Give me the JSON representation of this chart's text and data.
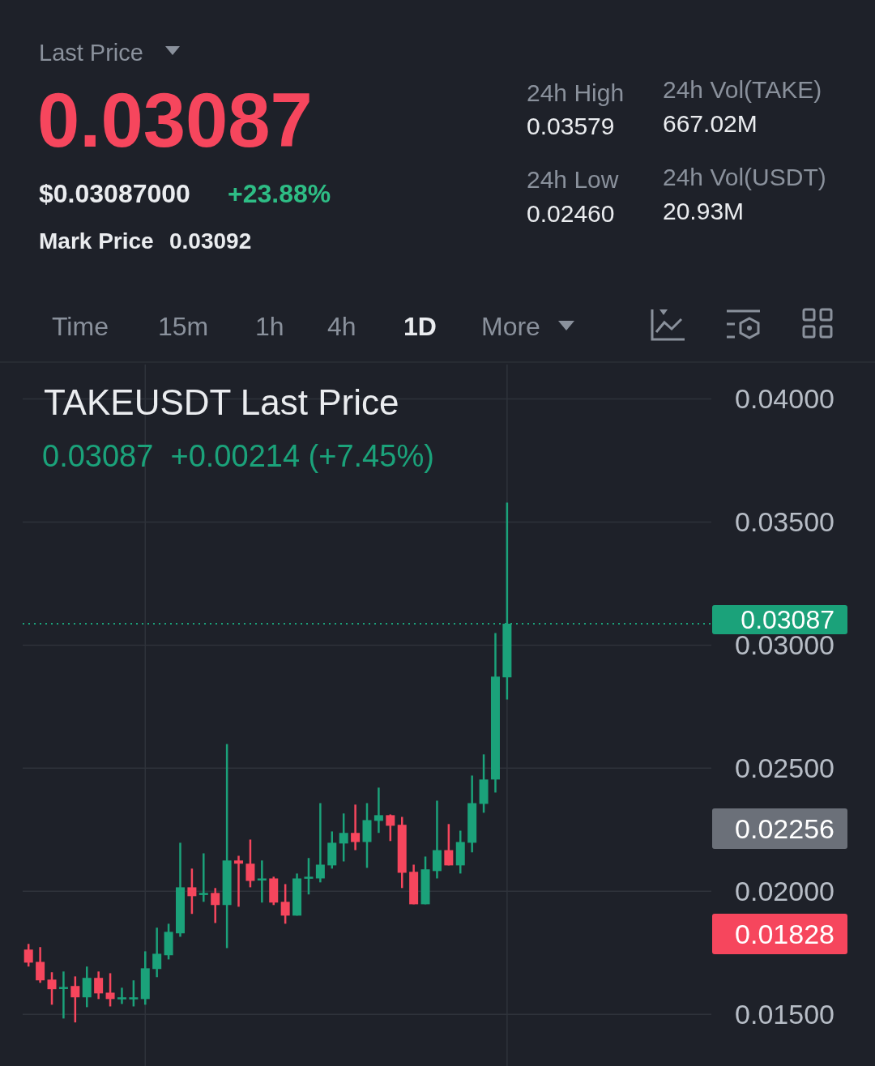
{
  "chart_data": {
    "type": "candlestick",
    "title": "TAKEUSDT Last Price",
    "subtitle": "0.03087  +0.00214 (+7.45%)",
    "categories": [
      null,
      null,
      null,
      null,
      null,
      null,
      null,
      null,
      null,
      null,
      null,
      null,
      null,
      null,
      null,
      null,
      null,
      null,
      null,
      null,
      null,
      null,
      null,
      null,
      null,
      null,
      null,
      null,
      null,
      null,
      null,
      null,
      null,
      null,
      null,
      null,
      null,
      null,
      null,
      null,
      null,
      null,
      null,
      null,
      null,
      null,
      null,
      null,
      null,
      null,
      null,
      null,
      null,
      null,
      null,
      null,
      null,
      null,
      null
    ],
    "ohlc": [
      [
        0.01763,
        0.01786,
        0.01694,
        0.0171
      ],
      [
        0.01713,
        0.01773,
        0.01628,
        0.01638
      ],
      [
        0.01641,
        0.01671,
        0.01539,
        0.01602
      ],
      [
        0.01608,
        0.01674,
        0.01483,
        0.01611
      ],
      [
        0.01615,
        0.01654,
        0.01467,
        0.01569
      ],
      [
        0.01569,
        0.01694,
        0.01529,
        0.01648
      ],
      [
        0.01648,
        0.01674,
        0.01562,
        0.01585
      ],
      [
        0.01588,
        0.01667,
        0.01532,
        0.01562
      ],
      [
        0.01562,
        0.01608,
        0.01542,
        0.01569
      ],
      [
        0.01562,
        0.01638,
        0.01532,
        0.01569
      ],
      [
        0.01562,
        0.01756,
        0.01539,
        0.01687
      ],
      [
        0.01684,
        0.01852,
        0.01651,
        0.01746
      ],
      [
        0.0174,
        0.01868,
        0.01723,
        0.01835
      ],
      [
        0.01829,
        0.02197,
        0.01815,
        0.02016
      ],
      [
        0.02016,
        0.02092,
        0.01908,
        0.0198
      ],
      [
        0.01987,
        0.02154,
        0.01957,
        0.01993
      ],
      [
        0.01993,
        0.02013,
        0.01871,
        0.01944
      ],
      [
        0.01944,
        0.02598,
        0.01769,
        0.02125
      ],
      [
        0.02125,
        0.02144,
        0.01937,
        0.02112
      ],
      [
        0.02112,
        0.0221,
        0.02016,
        0.02042
      ],
      [
        0.02046,
        0.02125,
        0.01954,
        0.02052
      ],
      [
        0.02052,
        0.02059,
        0.01944,
        0.01954
      ],
      [
        0.01957,
        0.02029,
        0.01868,
        0.01901
      ],
      [
        0.01901,
        0.02072,
        0.01901,
        0.02052
      ],
      [
        0.02052,
        0.02135,
        0.01987,
        0.02059
      ],
      [
        0.02052,
        0.02358,
        0.02036,
        0.02108
      ],
      [
        0.02105,
        0.02243,
        0.02092,
        0.02197
      ],
      [
        0.02194,
        0.02316,
        0.02121,
        0.02237
      ],
      [
        0.02237,
        0.02352,
        0.02167,
        0.022
      ],
      [
        0.022,
        0.02358,
        0.02095,
        0.02289
      ],
      [
        0.02286,
        0.02421,
        0.02237,
        0.02309
      ],
      [
        0.02309,
        0.02312,
        0.02204,
        0.02266
      ],
      [
        0.0227,
        0.02302,
        0.02013,
        0.02075
      ],
      [
        0.02079,
        0.02108,
        0.01947,
        0.01947
      ],
      [
        0.01947,
        0.02141,
        0.01947,
        0.02089
      ],
      [
        0.02082,
        0.02368,
        0.02052,
        0.02167
      ],
      [
        0.02167,
        0.02273,
        0.02105,
        0.02105
      ],
      [
        0.02105,
        0.02246,
        0.02072,
        0.022
      ],
      [
        0.02197,
        0.0247,
        0.02158,
        0.02358
      ],
      [
        0.02355,
        0.02556,
        0.02319,
        0.02454
      ],
      [
        0.02454,
        0.03049,
        0.02401,
        0.02872
      ],
      [
        0.02869,
        0.03579,
        0.02779,
        0.03087
      ],
      null,
      null,
      null,
      null,
      null,
      null,
      null,
      null,
      null,
      null,
      null,
      null,
      null,
      null,
      null,
      null,
      null
    ],
    "colors": [
      "#f6465d",
      "#f6465d",
      "#f6465d",
      "#1ba27a",
      "#f6465d",
      "#1ba27a",
      "#f6465d",
      "#f6465d",
      "#1ba27a",
      "#1ba27a",
      "#1ba27a",
      "#1ba27a",
      "#1ba27a",
      "#1ba27a",
      "#f6465d",
      "#1ba27a",
      "#f6465d",
      "#1ba27a",
      "#f6465d",
      "#f6465d",
      "#1ba27a",
      "#f6465d",
      "#f6465d",
      "#1ba27a",
      "#1ba27a",
      "#1ba27a",
      "#1ba27a",
      "#1ba27a",
      "#f6465d",
      "#1ba27a",
      "#1ba27a",
      "#f6465d",
      "#f6465d",
      "#f6465d",
      "#1ba27a",
      "#1ba27a",
      "#f6465d",
      "#1ba27a",
      "#1ba27a",
      "#1ba27a",
      "#1ba27a",
      "#1ba27a",
      null,
      null,
      null,
      null,
      null,
      null,
      null,
      null,
      null,
      null,
      null,
      null,
      null,
      null,
      null,
      null,
      null
    ],
    "ylim": [
      0.0129,
      0.0414
    ],
    "yticks": [
      {
        "value": 0.015,
        "label": "0.01500"
      },
      {
        "value": 0.02,
        "label": "0.02000"
      },
      {
        "value": 0.025,
        "label": "0.02500"
      },
      {
        "value": 0.03,
        "label": "0.03000"
      },
      {
        "value": 0.035,
        "label": "0.03500"
      },
      {
        "value": 0.04,
        "label": "0.04000"
      }
    ],
    "grid": "y",
    "ref_lines": [
      {
        "axis": "y",
        "value": 0.03087,
        "label": "0.03087",
        "color": "#1ba27a",
        "line_style": "dotted"
      }
    ],
    "annotations": [
      "Last Price",
      "0.03087",
      "$0.03087000",
      "+23.88%",
      "Mark Price",
      "0.03092",
      "24h High",
      "0.03579",
      "24h Vol(TAKE)",
      "667.02M",
      "24h Low",
      "0.02460",
      "24h Vol(USDT)",
      "20.93M",
      "Time",
      "15m",
      "1h",
      "4h",
      "1D",
      "More",
      "0.02256",
      "0.01828"
    ]
  }
}
